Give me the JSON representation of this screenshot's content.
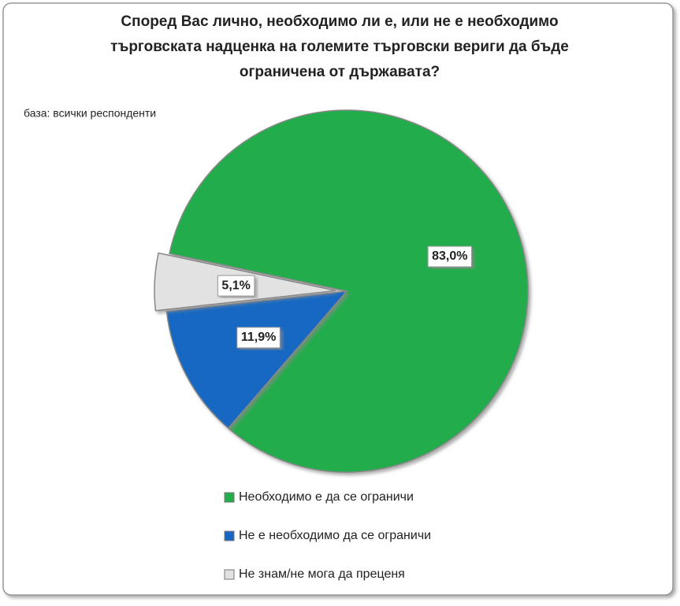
{
  "chart_data": {
    "type": "pie",
    "title": [
      "Според Вас лично, необходимо ли е, или не е необходимо",
      "търговската надценка на големите търговски вериги да бъде",
      "ограничена от държавата?"
    ],
    "subtitle": "база: всички респонденти",
    "categories": [
      "Необходимо е да се ограничи",
      "Не е необходимо да се ограничи",
      "Не знам/не мога да преценя"
    ],
    "values": [
      83.0,
      11.9,
      5.1
    ],
    "value_labels": [
      "83,0%",
      "11,9%",
      "5,1%"
    ],
    "colors": [
      "#22ac4b",
      "#1667c2",
      "#e2e2e2"
    ]
  }
}
